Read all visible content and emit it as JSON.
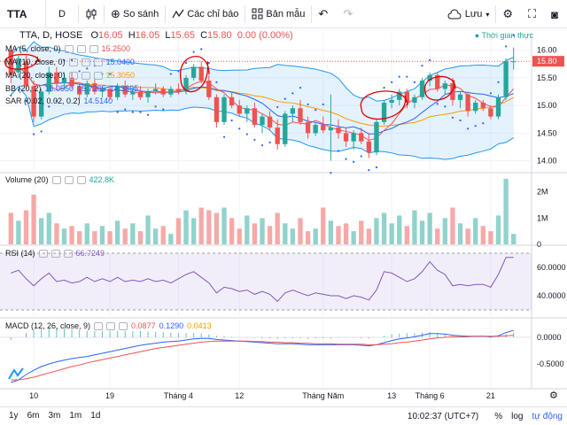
{
  "toolbar": {
    "symbol": "TTA",
    "interval": "D",
    "compare": "So sánh",
    "indicators": "Các chỉ báo",
    "templates": "Bản mẫu",
    "save": "Lưu"
  },
  "ohlc": {
    "symbol_line": "TTA, D, HOSE",
    "o_label": "O",
    "o": "16.05",
    "h_label": "H",
    "h": "16.05",
    "l_label": "L",
    "l": "15.65",
    "c_label": "C",
    "c": "15.80",
    "chg": "0.00 (0.00%)"
  },
  "market_status": "● Thời gian thực",
  "legends": {
    "ma5": {
      "label": "MA (5, close, 0)",
      "value": "15.2500"
    },
    "ma10": {
      "label": "MA (10, close, 0)",
      "value": "15.0400"
    },
    "ma20": {
      "label": "MA (20, close, 0)",
      "value": "15.3050"
    },
    "bb": {
      "label": "BB (20, 2)",
      "v1": "15.0550",
      "v2": "15.7205",
      "v3": "14.3895"
    },
    "sar": {
      "label": "SAR (0.02, 0.02, 0.2)",
      "value": "14.5140"
    },
    "volume": {
      "label": "Volume (20)",
      "value": "422.8K"
    },
    "rsi": {
      "label": "RSI (14)",
      "value": "66.7249"
    },
    "macd": {
      "label": "MACD (12, 26, close, 9)",
      "v1": "0.0877",
      "v2": "0.1290",
      "v3": "0.0413"
    }
  },
  "price_badge": "15.80",
  "bottom": {
    "ranges": [
      "1y",
      "6m",
      "3m",
      "1m",
      "1d"
    ],
    "time": "10:02:37 (UTC+7)",
    "pct": "%",
    "log": "log",
    "auto": "tự động"
  },
  "chart_data": {
    "type": "candlestick",
    "x_labels": [
      "10",
      "19",
      "Tháng 4",
      "12",
      "Tháng Năm",
      "13",
      "Tháng 6",
      "21"
    ],
    "price_axis": {
      "ticks": [
        "16.00",
        "15.50",
        "15.00",
        "14.50",
        "14.00"
      ],
      "ylim": [
        13.8,
        16.3
      ]
    },
    "volume_axis": {
      "ticks": [
        "2M",
        "1M",
        "0"
      ],
      "ylim": [
        0,
        2.7
      ]
    },
    "rsi_axis": {
      "ticks": [
        "60.0000",
        "40.0000"
      ],
      "band": [
        30,
        70
      ],
      "ylim": [
        25,
        75
      ]
    },
    "macd_axis": {
      "ticks": [
        "0.0000",
        "-0.5000"
      ],
      "ylim": [
        -0.95,
        0.35
      ]
    },
    "candles": [
      [
        16.0,
        16.1,
        15.4,
        15.55
      ],
      [
        15.6,
        15.9,
        15.5,
        15.85
      ],
      [
        15.8,
        15.9,
        15.3,
        15.35
      ],
      [
        15.35,
        15.45,
        14.7,
        14.8
      ],
      [
        14.8,
        15.3,
        14.75,
        15.25
      ],
      [
        15.25,
        15.7,
        15.2,
        15.6
      ],
      [
        15.6,
        15.7,
        15.3,
        15.4
      ],
      [
        15.4,
        15.6,
        15.3,
        15.5
      ],
      [
        15.5,
        15.6,
        15.3,
        15.35
      ],
      [
        15.35,
        15.4,
        15.1,
        15.2
      ],
      [
        15.2,
        15.45,
        15.15,
        15.4
      ],
      [
        15.4,
        15.5,
        15.2,
        15.25
      ],
      [
        15.25,
        15.35,
        15.15,
        15.3
      ],
      [
        15.3,
        15.35,
        15.1,
        15.15
      ],
      [
        15.15,
        15.4,
        15.1,
        15.35
      ],
      [
        15.35,
        15.45,
        15.15,
        15.2
      ],
      [
        15.2,
        15.3,
        15.1,
        15.25
      ],
      [
        15.25,
        15.35,
        15.1,
        15.15
      ],
      [
        15.15,
        15.3,
        15.05,
        15.25
      ],
      [
        15.25,
        15.4,
        15.2,
        15.3
      ],
      [
        15.3,
        15.35,
        15.15,
        15.2
      ],
      [
        15.2,
        15.35,
        15.15,
        15.3
      ],
      [
        15.3,
        15.4,
        15.2,
        15.25
      ],
      [
        15.25,
        15.55,
        15.2,
        15.5
      ],
      [
        15.5,
        15.75,
        15.45,
        15.7
      ],
      [
        15.7,
        15.8,
        15.4,
        15.45
      ],
      [
        15.45,
        15.55,
        15.1,
        15.15
      ],
      [
        15.15,
        15.2,
        14.6,
        14.7
      ],
      [
        14.7,
        15.2,
        14.65,
        15.15
      ],
      [
        15.15,
        15.25,
        14.95,
        15.0
      ],
      [
        15.0,
        15.1,
        14.8,
        14.85
      ],
      [
        14.85,
        15.0,
        14.7,
        14.95
      ],
      [
        14.95,
        15.05,
        14.6,
        14.65
      ],
      [
        14.65,
        14.85,
        14.5,
        14.8
      ],
      [
        14.8,
        14.9,
        14.55,
        14.6
      ],
      [
        14.6,
        14.75,
        14.2,
        14.3
      ],
      [
        14.3,
        14.9,
        14.25,
        14.85
      ],
      [
        14.85,
        15.0,
        14.7,
        14.95
      ],
      [
        14.95,
        15.1,
        14.65,
        14.7
      ],
      [
        14.7,
        14.8,
        14.4,
        14.5
      ],
      [
        14.5,
        14.7,
        14.45,
        14.65
      ],
      [
        14.65,
        14.8,
        14.5,
        14.55
      ],
      [
        14.55,
        15.2,
        14.0,
        14.6
      ],
      [
        14.6,
        14.75,
        14.4,
        14.5
      ],
      [
        14.5,
        14.6,
        14.25,
        14.35
      ],
      [
        14.35,
        14.55,
        14.2,
        14.5
      ],
      [
        14.5,
        14.6,
        14.3,
        14.35
      ],
      [
        14.35,
        14.5,
        14.05,
        14.15
      ],
      [
        14.15,
        14.75,
        14.1,
        14.7
      ],
      [
        14.7,
        15.1,
        14.65,
        15.05
      ],
      [
        15.05,
        15.2,
        14.95,
        15.1
      ],
      [
        15.1,
        15.3,
        15.0,
        15.25
      ],
      [
        15.25,
        15.3,
        14.95,
        15.05
      ],
      [
        15.05,
        15.2,
        14.95,
        15.15
      ],
      [
        15.15,
        15.5,
        15.1,
        15.45
      ],
      [
        15.45,
        15.6,
        15.35,
        15.55
      ],
      [
        15.55,
        15.6,
        15.25,
        15.3
      ],
      [
        15.3,
        15.45,
        15.2,
        15.4
      ],
      [
        15.4,
        15.5,
        15.0,
        15.1
      ],
      [
        15.1,
        15.25,
        14.95,
        15.2
      ],
      [
        15.2,
        15.25,
        14.8,
        14.9
      ],
      [
        14.9,
        15.1,
        14.85,
        15.05
      ],
      [
        15.05,
        15.1,
        14.9,
        14.95
      ],
      [
        14.95,
        15.0,
        14.75,
        14.8
      ],
      [
        14.8,
        15.2,
        14.75,
        15.15
      ],
      [
        15.15,
        15.85,
        15.1,
        15.8
      ],
      [
        15.8,
        16.05,
        15.65,
        15.8
      ]
    ],
    "volume": [
      1.2,
      0.9,
      1.3,
      1.9,
      1.0,
      1.2,
      0.8,
      0.6,
      0.7,
      0.5,
      0.8,
      0.5,
      0.7,
      0.5,
      0.9,
      0.6,
      0.8,
      0.5,
      1.1,
      0.6,
      0.7,
      0.4,
      1.0,
      1.3,
      1.0,
      1.4,
      1.3,
      1.2,
      1.4,
      1.0,
      0.6,
      1.1,
      0.8,
      1.0,
      0.7,
      1.2,
      0.8,
      0.6,
      1.0,
      0.5,
      0.6,
      1.4,
      0.9,
      0.7,
      0.8,
      0.5,
      0.9,
      0.6,
      1.0,
      1.2,
      0.8,
      1.1,
      0.7,
      1.3,
      0.9,
      1.2,
      0.6,
      1.0,
      1.4,
      0.8,
      0.6,
      1.0,
      0.7,
      0.5,
      1.1,
      2.5,
      0.4
    ],
    "rsi": [
      56,
      58,
      52,
      47,
      52,
      56,
      50,
      51,
      49,
      50,
      53,
      50,
      52,
      50,
      53,
      50,
      51,
      50,
      52,
      50,
      51,
      49,
      52,
      55,
      57,
      53,
      49,
      42,
      46,
      45,
      43,
      44,
      41,
      43,
      41,
      36,
      42,
      44,
      42,
      40,
      42,
      41,
      40,
      40,
      38,
      40,
      39,
      37,
      44,
      57,
      56,
      53,
      50,
      52,
      57,
      64,
      58,
      55,
      47,
      48,
      47,
      48,
      48,
      46,
      55,
      67,
      67
    ],
    "macd": [
      -0.85,
      -0.8,
      -0.7,
      -0.62,
      -0.55,
      -0.5,
      -0.46,
      -0.43,
      -0.4,
      -0.38,
      -0.36,
      -0.33,
      -0.3,
      -0.27,
      -0.24,
      -0.21,
      -0.18,
      -0.15,
      -0.13,
      -0.11,
      -0.09,
      -0.08,
      -0.07,
      -0.05,
      -0.03,
      -0.02,
      -0.02,
      -0.04,
      -0.05,
      -0.06,
      -0.07,
      -0.08,
      -0.09,
      -0.1,
      -0.11,
      -0.12,
      -0.12,
      -0.12,
      -0.13,
      -0.14,
      -0.14,
      -0.14,
      -0.14,
      -0.14,
      -0.14,
      -0.14,
      -0.15,
      -0.16,
      -0.14,
      -0.1,
      -0.06,
      -0.03,
      -0.01,
      0.01,
      0.04,
      0.07,
      0.07,
      0.06,
      0.04,
      0.03,
      0.02,
      0.02,
      0.02,
      0.01,
      0.03,
      0.09,
      0.13
    ],
    "signal": [
      -0.8,
      -0.8,
      -0.78,
      -0.75,
      -0.71,
      -0.67,
      -0.63,
      -0.59,
      -0.55,
      -0.52,
      -0.48,
      -0.45,
      -0.42,
      -0.39,
      -0.36,
      -0.33,
      -0.3,
      -0.27,
      -0.24,
      -0.21,
      -0.19,
      -0.17,
      -0.15,
      -0.13,
      -0.11,
      -0.09,
      -0.08,
      -0.07,
      -0.07,
      -0.07,
      -0.07,
      -0.07,
      -0.08,
      -0.08,
      -0.09,
      -0.09,
      -0.1,
      -0.1,
      -0.11,
      -0.11,
      -0.12,
      -0.12,
      -0.12,
      -0.13,
      -0.13,
      -0.13,
      -0.13,
      -0.14,
      -0.14,
      -0.13,
      -0.12,
      -0.1,
      -0.09,
      -0.07,
      -0.05,
      -0.03,
      -0.01,
      0.0,
      0.01,
      0.01,
      0.01,
      0.02,
      0.02,
      0.02,
      0.02,
      0.03,
      0.04
    ]
  }
}
